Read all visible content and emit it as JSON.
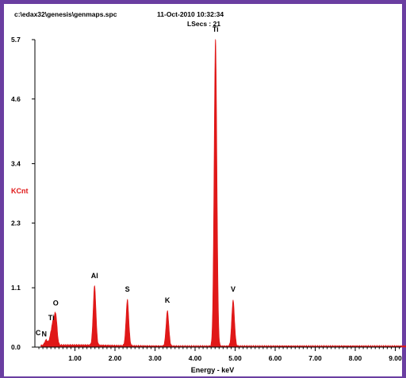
{
  "header": {
    "file_path": "c:\\edax32\\genesis\\genmaps.spc",
    "date_time": "11-Oct-2010 10:32:34",
    "lsecs": "LSecs : 21"
  },
  "colors": {
    "frame": "#6a3ea1",
    "spectrum": "#e01818",
    "ylabel": "#e01818"
  },
  "chart_data": {
    "type": "area",
    "xlabel": "Energy - keV",
    "ylabel": "KCnt",
    "xlim": [
      0.0,
      10.0
    ],
    "ylim": [
      0.0,
      5.7
    ],
    "x_ticks": [
      "1.00",
      "2.00",
      "3.00",
      "4.00",
      "5.00",
      "6.00",
      "7.00",
      "8.00",
      "9.00"
    ],
    "y_ticks": [
      "0.0",
      "1.1",
      "2.3",
      "3.4",
      "4.6",
      "5.7"
    ],
    "peaks": [
      {
        "label": "C",
        "energy": 0.28,
        "kcnt": 0.1
      },
      {
        "label": "N",
        "energy": 0.39,
        "kcnt": 0.14
      },
      {
        "label": "Ti",
        "energy": 0.45,
        "kcnt": 0.35
      },
      {
        "label": "O",
        "energy": 0.52,
        "kcnt": 0.55
      },
      {
        "label": "Al",
        "energy": 1.49,
        "kcnt": 1.1
      },
      {
        "label": "S",
        "energy": 2.31,
        "kcnt": 0.85
      },
      {
        "label": "K",
        "energy": 3.31,
        "kcnt": 0.65
      },
      {
        "label": "Ti",
        "energy": 4.51,
        "kcnt": 5.7
      },
      {
        "label": "V",
        "energy": 4.95,
        "kcnt": 0.85
      }
    ]
  }
}
